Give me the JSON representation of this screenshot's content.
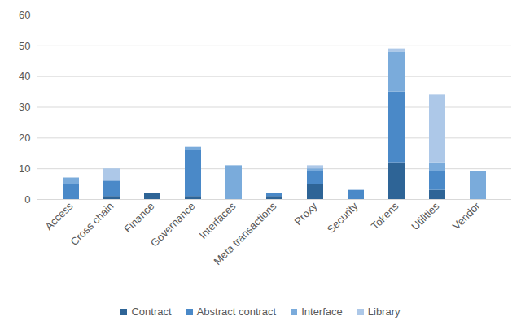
{
  "chart_data": {
    "type": "bar",
    "stacked": true,
    "grid": true,
    "legend": "bottom",
    "categories": [
      "Access",
      "Cross chain",
      "Finance",
      "Governance",
      "Interfaces",
      "Meta transactions",
      "Proxy",
      "Security",
      "Tokens",
      "Utilities",
      "Vendor"
    ],
    "series": [
      {
        "name": "Contract",
        "color": "#2e6496",
        "values": [
          0,
          1,
          2,
          1,
          0,
          1,
          5,
          0,
          12,
          3,
          0
        ]
      },
      {
        "name": "Abstract contract",
        "color": "#4a89c8",
        "values": [
          5,
          5,
          0,
          15,
          0,
          1,
          4,
          3,
          23,
          6,
          0
        ]
      },
      {
        "name": "Interface",
        "color": "#7aabdb",
        "values": [
          2,
          0,
          0,
          1,
          11,
          0,
          1,
          0,
          13,
          3,
          9
        ]
      },
      {
        "name": "Library",
        "color": "#adc8e8",
        "values": [
          0,
          4,
          0,
          0,
          0,
          0,
          1,
          0,
          1,
          22,
          0
        ]
      }
    ],
    "ylim": [
      0,
      60
    ],
    "yticks": [
      0,
      10,
      20,
      30,
      40,
      50,
      60
    ]
  }
}
